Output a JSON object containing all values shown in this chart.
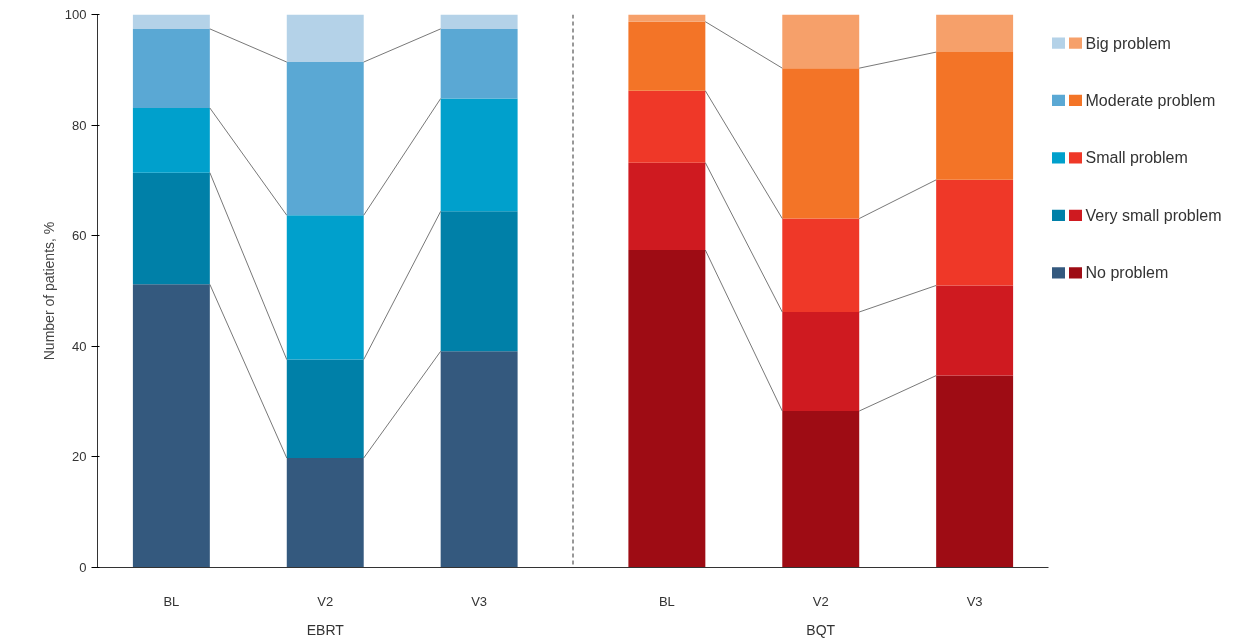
{
  "chart_data": {
    "type": "bar",
    "stacked": true,
    "ylabel": "Number of patients, %",
    "categories": [
      "BL",
      "V2",
      "V3",
      "BL",
      "V2",
      "V3"
    ],
    "series": [
      {
        "name": "No problem",
        "colors": [
          "#34597e",
          "#34597e",
          "#34597e",
          "#9e0c14",
          "#9e0c14",
          "#9e0c14"
        ],
        "values": [
          51.2,
          19.8,
          39.1,
          57.4,
          28.3,
          34.7
        ]
      },
      {
        "name": "Very small problem",
        "colors": [
          "#0080a8",
          "#0080a8",
          "#0080a8",
          "#cf1a20",
          "#cf1a20",
          "#cf1a20"
        ],
        "values": [
          20.2,
          17.8,
          25.3,
          15.8,
          17.9,
          16.3
        ]
      },
      {
        "name": "Small problem",
        "colors": [
          "#00a0cc",
          "#00a0cc",
          "#00a0cc",
          "#ef3828",
          "#ef3828",
          "#ef3828"
        ],
        "values": [
          11.7,
          26.1,
          20.4,
          13.0,
          16.9,
          19.1
        ]
      },
      {
        "name": "Moderate problem",
        "colors": [
          "#5aa8d4",
          "#5aa8d4",
          "#5aa8d4",
          "#f37427",
          "#f37427",
          "#f37427"
        ],
        "values": [
          14.3,
          27.7,
          12.6,
          12.5,
          27.2,
          23.1
        ]
      },
      {
        "name": "Big problem",
        "colors": [
          "#b4d2e8",
          "#b4d2e8",
          "#b4d2e8",
          "#f6a06a",
          "#f6a06a",
          "#f6a06a"
        ],
        "values": [
          2.6,
          8.6,
          2.6,
          1.3,
          9.7,
          6.8
        ]
      }
    ],
    "ylim": [
      0,
      100
    ],
    "yticks": [
      0,
      20,
      40,
      60,
      80,
      100
    ],
    "grid": false,
    "legend": "right",
    "annotations": [
      "EBRT",
      "BQT"
    ]
  }
}
